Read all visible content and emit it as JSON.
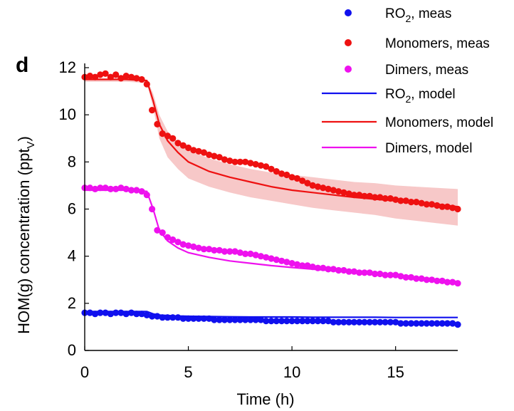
{
  "panel_label": "d",
  "colors": {
    "ro2": "#1010ee",
    "monomers": "#ee1111",
    "dimers": "#ee11ee",
    "uncertainty_band": "#f7c8c8"
  },
  "chart_data": {
    "type": "scatter",
    "title": "",
    "xlabel": "Time (h)",
    "ylabel_main": "HOM(g) concentration  (ppt",
    "ylabel_sub": "V",
    "ylabel_close": ")",
    "xlim": [
      0,
      18
    ],
    "ylim": [
      0,
      12
    ],
    "xticks": [
      0,
      5,
      10,
      15
    ],
    "yticks": [
      0,
      2,
      4,
      6,
      8,
      10,
      12
    ],
    "grid": false,
    "legend_position": "top-right",
    "legend": [
      {
        "main": "RO",
        "sub": "2",
        "rest": ", meas",
        "series": "ro2_meas",
        "kind": "marker",
        "color": "#1010ee"
      },
      {
        "main": "Monomers, meas",
        "sub": "",
        "rest": "",
        "series": "monomers_meas",
        "kind": "marker",
        "color": "#ee1111"
      },
      {
        "main": "Dimers, meas",
        "sub": "",
        "rest": "",
        "series": "dimers_meas",
        "kind": "marker",
        "color": "#ee11ee"
      },
      {
        "main": "RO",
        "sub": "2",
        "rest": ", model",
        "series": "ro2_model",
        "kind": "line",
        "color": "#1010ee"
      },
      {
        "main": "Monomers, model",
        "sub": "",
        "rest": "",
        "series": "monomers_model",
        "kind": "line",
        "color": "#ee1111"
      },
      {
        "main": "Dimers, model",
        "sub": "",
        "rest": "",
        "series": "dimers_model",
        "kind": "line",
        "color": "#ee11ee"
      }
    ],
    "measured_x": [
      0.0,
      0.25,
      0.5,
      0.75,
      1.0,
      1.25,
      1.5,
      1.75,
      2.0,
      2.25,
      2.5,
      2.75,
      3.0,
      3.25,
      3.5,
      3.75,
      4.0,
      4.25,
      4.5,
      4.75,
      5.0,
      5.25,
      5.5,
      5.75,
      6.0,
      6.25,
      6.5,
      6.75,
      7.0,
      7.25,
      7.5,
      7.75,
      8.0,
      8.25,
      8.5,
      8.75,
      9.0,
      9.25,
      9.5,
      9.75,
      10.0,
      10.25,
      10.5,
      10.75,
      11.0,
      11.25,
      11.5,
      11.75,
      12.0,
      12.25,
      12.5,
      12.75,
      13.0,
      13.25,
      13.5,
      13.75,
      14.0,
      14.25,
      14.5,
      14.75,
      15.0,
      15.25,
      15.5,
      15.75,
      16.0,
      16.25,
      16.5,
      16.75,
      17.0,
      17.25,
      17.5,
      17.75,
      18.0
    ],
    "series": [
      {
        "id": "monomers_meas",
        "kind": "scatter",
        "color": "#ee1111",
        "values": [
          11.6,
          11.65,
          11.6,
          11.7,
          11.75,
          11.6,
          11.7,
          11.55,
          11.65,
          11.6,
          11.55,
          11.5,
          11.3,
          10.2,
          9.6,
          9.2,
          9.1,
          9.0,
          8.8,
          8.7,
          8.6,
          8.5,
          8.45,
          8.4,
          8.3,
          8.25,
          8.2,
          8.1,
          8.05,
          8.0,
          8.0,
          8.0,
          7.95,
          7.9,
          7.85,
          7.8,
          7.7,
          7.6,
          7.5,
          7.45,
          7.35,
          7.3,
          7.2,
          7.1,
          7.0,
          6.95,
          6.9,
          6.85,
          6.8,
          6.75,
          6.7,
          6.65,
          6.6,
          6.6,
          6.55,
          6.55,
          6.5,
          6.5,
          6.45,
          6.45,
          6.4,
          6.35,
          6.35,
          6.3,
          6.3,
          6.25,
          6.2,
          6.2,
          6.15,
          6.1,
          6.1,
          6.05,
          6.0
        ]
      },
      {
        "id": "dimers_meas",
        "kind": "scatter",
        "color": "#ee11ee",
        "values": [
          6.9,
          6.9,
          6.85,
          6.9,
          6.9,
          6.85,
          6.85,
          6.9,
          6.85,
          6.8,
          6.8,
          6.75,
          6.6,
          6.0,
          5.1,
          5.0,
          4.8,
          4.7,
          4.6,
          4.5,
          4.45,
          4.4,
          4.35,
          4.3,
          4.3,
          4.25,
          4.25,
          4.2,
          4.2,
          4.2,
          4.15,
          4.1,
          4.1,
          4.05,
          4.0,
          3.95,
          3.9,
          3.85,
          3.8,
          3.75,
          3.7,
          3.65,
          3.6,
          3.6,
          3.55,
          3.5,
          3.5,
          3.45,
          3.45,
          3.4,
          3.4,
          3.35,
          3.35,
          3.3,
          3.3,
          3.3,
          3.25,
          3.25,
          3.2,
          3.2,
          3.2,
          3.15,
          3.1,
          3.1,
          3.05,
          3.05,
          3.0,
          3.0,
          2.95,
          2.95,
          2.9,
          2.9,
          2.85
        ]
      },
      {
        "id": "ro2_meas",
        "kind": "scatter",
        "color": "#1010ee",
        "values": [
          1.6,
          1.6,
          1.55,
          1.6,
          1.6,
          1.55,
          1.6,
          1.6,
          1.55,
          1.6,
          1.55,
          1.55,
          1.5,
          1.45,
          1.45,
          1.4,
          1.4,
          1.4,
          1.4,
          1.35,
          1.35,
          1.35,
          1.35,
          1.35,
          1.35,
          1.3,
          1.3,
          1.3,
          1.3,
          1.3,
          1.3,
          1.3,
          1.3,
          1.3,
          1.3,
          1.25,
          1.25,
          1.25,
          1.25,
          1.25,
          1.25,
          1.25,
          1.25,
          1.25,
          1.25,
          1.25,
          1.25,
          1.25,
          1.2,
          1.2,
          1.2,
          1.2,
          1.2,
          1.2,
          1.2,
          1.2,
          1.2,
          1.2,
          1.2,
          1.2,
          1.2,
          1.15,
          1.15,
          1.15,
          1.15,
          1.15,
          1.15,
          1.15,
          1.15,
          1.15,
          1.15,
          1.15,
          1.1
        ]
      }
    ],
    "model_x": [
      0,
      1,
      2,
      3,
      3.3,
      3.6,
      4,
      4.5,
      5,
      6,
      7,
      8,
      9,
      10,
      11,
      12,
      13,
      14,
      15,
      16,
      17,
      18
    ],
    "models": [
      {
        "id": "monomers_model",
        "color": "#ee1111",
        "values": [
          11.5,
          11.5,
          11.5,
          11.45,
          10.6,
          9.6,
          8.9,
          8.4,
          8.0,
          7.6,
          7.35,
          7.15,
          6.95,
          6.8,
          6.7,
          6.6,
          6.5,
          6.42,
          6.35,
          6.27,
          6.2,
          6.1
        ]
      },
      {
        "id": "dimers_model",
        "color": "#ee11ee",
        "values": [
          6.8,
          6.8,
          6.8,
          6.75,
          6.0,
          5.1,
          4.65,
          4.35,
          4.15,
          3.95,
          3.8,
          3.7,
          3.6,
          3.52,
          3.45,
          3.38,
          3.3,
          3.22,
          3.15,
          3.08,
          3.0,
          2.92
        ]
      },
      {
        "id": "ro2_model",
        "color": "#1010ee",
        "values": [
          1.65,
          1.65,
          1.65,
          1.65,
          1.55,
          1.5,
          1.48,
          1.46,
          1.45,
          1.44,
          1.43,
          1.42,
          1.42,
          1.42,
          1.41,
          1.41,
          1.41,
          1.41,
          1.4,
          1.4,
          1.4,
          1.4
        ]
      }
    ],
    "band": {
      "id": "monomers_model_band",
      "color": "#f7c8c8",
      "upper": [
        11.55,
        11.55,
        11.55,
        11.5,
        10.9,
        10.0,
        9.3,
        8.85,
        8.5,
        8.15,
        7.9,
        7.7,
        7.55,
        7.45,
        7.35,
        7.25,
        7.15,
        7.1,
        7.0,
        6.95,
        6.9,
        6.85
      ],
      "lower": [
        11.4,
        11.4,
        11.4,
        11.35,
        10.3,
        9.0,
        8.2,
        7.7,
        7.3,
        6.95,
        6.7,
        6.5,
        6.35,
        6.2,
        6.05,
        5.95,
        5.85,
        5.75,
        5.6,
        5.5,
        5.4,
        5.3
      ]
    }
  }
}
